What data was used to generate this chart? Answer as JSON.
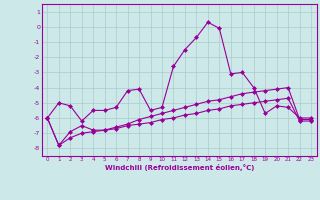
{
  "title": "",
  "xlabel": "Windchill (Refroidissement éolien,°C)",
  "background_color": "#cce8e8",
  "grid_color": "#aacccc",
  "line_color": "#990099",
  "x_ticks": [
    0,
    1,
    2,
    3,
    4,
    5,
    6,
    7,
    8,
    9,
    10,
    11,
    12,
    13,
    14,
    15,
    16,
    17,
    18,
    19,
    20,
    21,
    22,
    23
  ],
  "ylim": [
    -8.5,
    1.5
  ],
  "xlim": [
    -0.5,
    23.5
  ],
  "yticks": [
    1,
    0,
    -1,
    -2,
    -3,
    -4,
    -5,
    -6,
    -7,
    -8
  ],
  "series1_x": [
    0,
    1,
    2,
    3,
    4,
    5,
    6,
    7,
    8,
    9,
    10,
    11,
    12,
    13,
    14,
    15,
    16,
    17,
    18,
    19,
    20,
    21,
    22,
    23
  ],
  "series1_y": [
    -6.0,
    -5.0,
    -5.2,
    -6.2,
    -5.5,
    -5.5,
    -5.3,
    -4.2,
    -4.1,
    -5.5,
    -5.3,
    -2.6,
    -1.5,
    -0.7,
    0.3,
    -0.1,
    -3.1,
    -3.0,
    -4.0,
    -5.7,
    -5.2,
    -5.3,
    -6.0,
    -6.0
  ],
  "series2_x": [
    0,
    1,
    2,
    3,
    4,
    5,
    6,
    7,
    8,
    9,
    10,
    11,
    12,
    13,
    14,
    15,
    16,
    17,
    18,
    19,
    20,
    21,
    22,
    23
  ],
  "series2_y": [
    -6.0,
    -7.8,
    -6.9,
    -6.5,
    -6.8,
    -6.8,
    -6.6,
    -6.4,
    -6.1,
    -5.9,
    -5.7,
    -5.5,
    -5.3,
    -5.1,
    -4.9,
    -4.8,
    -4.6,
    -4.4,
    -4.3,
    -4.2,
    -4.1,
    -4.0,
    -6.1,
    -6.1
  ],
  "series3_x": [
    0,
    1,
    2,
    3,
    4,
    5,
    6,
    7,
    8,
    9,
    10,
    11,
    12,
    13,
    14,
    15,
    16,
    17,
    18,
    19,
    20,
    21,
    22,
    23
  ],
  "series3_y": [
    -6.0,
    -7.8,
    -7.3,
    -7.0,
    -6.9,
    -6.8,
    -6.7,
    -6.5,
    -6.4,
    -6.3,
    -6.1,
    -6.0,
    -5.8,
    -5.7,
    -5.5,
    -5.4,
    -5.2,
    -5.1,
    -5.0,
    -4.9,
    -4.8,
    -4.7,
    -6.2,
    -6.2
  ],
  "figsize": [
    3.2,
    2.0
  ],
  "dpi": 100
}
